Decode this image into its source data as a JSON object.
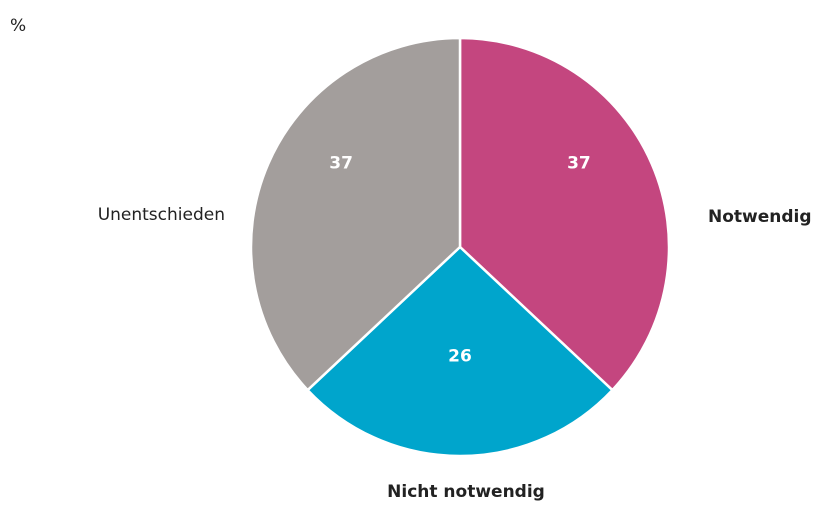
{
  "chart_data": {
    "type": "pie",
    "unit": "%",
    "categories": [
      "Notwendig",
      "Nicht notwendig",
      "Unentschieden"
    ],
    "values": [
      37,
      26,
      37
    ],
    "colors": [
      "#c4467f",
      "#00a5cc",
      "#a39e9c"
    ]
  }
}
